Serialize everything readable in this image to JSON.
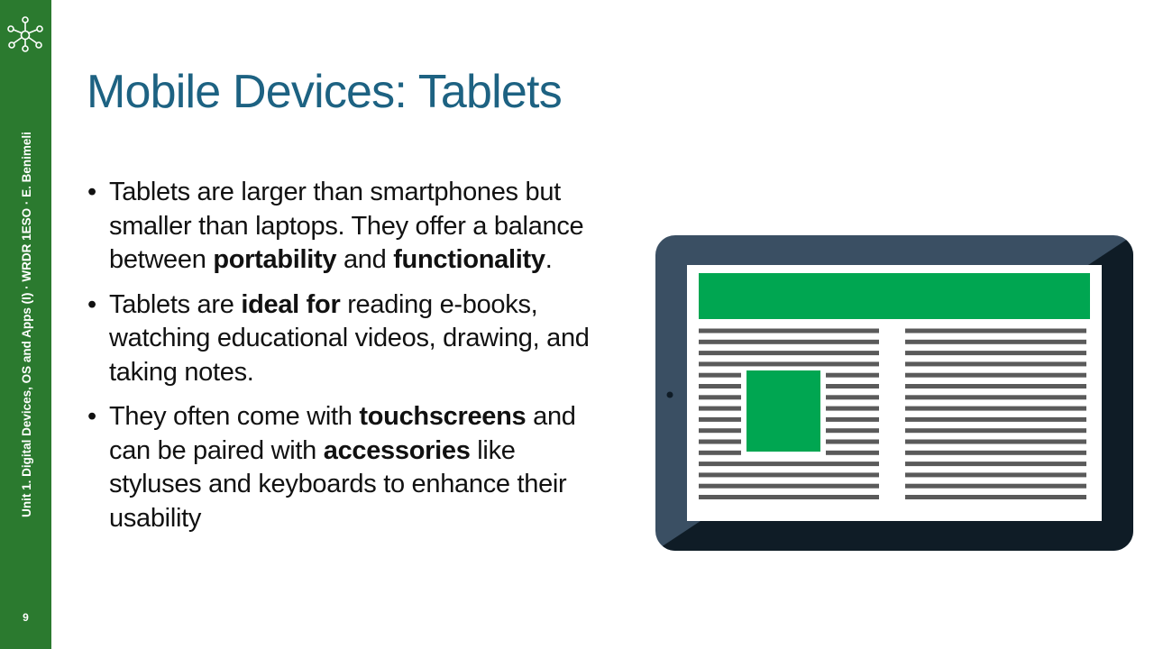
{
  "sidebar": {
    "caption": "Unit 1. Digital Devices, OS and Apps (I) · WRDR 1ESO · E. Benimeli",
    "page_number": "9",
    "logo_icon": "network-nodes-icon"
  },
  "slide": {
    "title": "Mobile Devices: Tablets",
    "bullets": [
      {
        "segments": [
          {
            "text": "Tablets are larger than smartphones but smaller than laptops. They offer a balance between ",
            "bold": false
          },
          {
            "text": "portability",
            "bold": true
          },
          {
            "text": " and ",
            "bold": false
          },
          {
            "text": "functionality",
            "bold": true
          },
          {
            "text": ".",
            "bold": false
          }
        ]
      },
      {
        "segments": [
          {
            "text": "Tablets are ",
            "bold": false
          },
          {
            "text": "ideal for",
            "bold": true
          },
          {
            "text": " reading e-books, watching educational videos, drawing, and taking notes.",
            "bold": false
          }
        ]
      },
      {
        "segments": [
          {
            "text": "They often come with ",
            "bold": false
          },
          {
            "text": "touchscreens",
            "bold": true
          },
          {
            "text": " and can be paired with ",
            "bold": false
          },
          {
            "text": "accessories",
            "bold": true
          },
          {
            "text": " like styluses and keyboards to enhance their usability",
            "bold": false
          }
        ]
      }
    ]
  },
  "illustration": {
    "icon": "tablet-icon",
    "colors": {
      "frame": "#3a4f63",
      "frame_shadow": "#0f1c26",
      "screen": "#ffffff",
      "accent": "#00a651",
      "text_lines": "#5a5a5a"
    }
  },
  "colors": {
    "sidebar": "#2b7a2f",
    "title": "#1d6282",
    "body_text": "#111111"
  }
}
